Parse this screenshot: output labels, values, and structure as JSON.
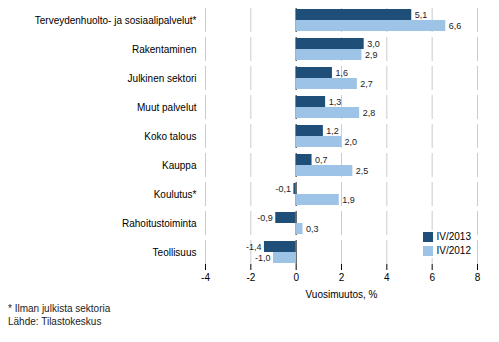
{
  "chart_data": {
    "type": "bar",
    "orientation": "horizontal",
    "categories": [
      "Terveydenhuolto- ja sosiaalipalvelut*",
      "Rakentaminen",
      "Julkinen sektori",
      "Muut palvelut",
      "Koko talous",
      "Kauppa",
      "Koulutus*",
      "Rahoitustoiminta",
      "Teollisuus"
    ],
    "series": [
      {
        "name": "IV/2013",
        "color": "#1f4e79",
        "values": [
          5.1,
          3.0,
          1.6,
          1.3,
          1.2,
          0.7,
          -0.1,
          -0.9,
          -1.4
        ],
        "value_labels": [
          "5,1",
          "3,0",
          "1,6",
          "1,3",
          "1,2",
          "0,7",
          "-0,1",
          "-0,9",
          "-1,4"
        ]
      },
      {
        "name": "IV/2012",
        "color": "#9dc3e6",
        "values": [
          6.6,
          2.9,
          2.7,
          2.8,
          2.0,
          2.5,
          1.9,
          0.3,
          -1.0
        ],
        "value_labels": [
          "6,6",
          "2,9",
          "2,7",
          "2,8",
          "2,0",
          "2,5",
          "1,9",
          "0,3",
          "-1,0"
        ]
      }
    ],
    "xlabel": "Vuosimuutos, %",
    "xlim": [
      -4,
      8
    ],
    "xticks": [
      -4,
      -2,
      0,
      2,
      4,
      6,
      8
    ],
    "grid": true,
    "legend": "lower right",
    "data_labels": true,
    "annotations": [
      "* Ilman julkista sektoria",
      "Lähde: Tilastokeskus"
    ]
  }
}
